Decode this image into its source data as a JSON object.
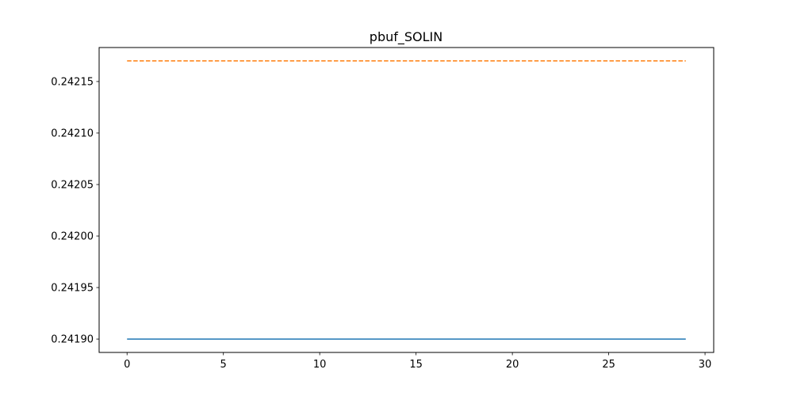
{
  "chart_data": {
    "type": "line",
    "title": "pbuf_SOLIN",
    "xlabel": "",
    "ylabel": "",
    "xlim": [
      -1.45,
      30.45
    ],
    "ylim": [
      0.241887,
      0.242183
    ],
    "xticks": [
      0,
      5,
      10,
      15,
      20,
      25,
      30
    ],
    "xtick_labels": [
      "0",
      "5",
      "10",
      "15",
      "20",
      "25",
      "30"
    ],
    "yticks": [
      0.2419,
      0.24195,
      0.242,
      0.24205,
      0.2421,
      0.24215
    ],
    "ytick_labels": [
      "0.24190",
      "0.24195",
      "0.24200",
      "0.24205",
      "0.24210",
      "0.24215"
    ],
    "grid": false,
    "series": [
      {
        "color": "#1f77b4",
        "dash": "solid",
        "x": [
          0,
          1,
          2,
          3,
          4,
          5,
          6,
          7,
          8,
          9,
          10,
          11,
          12,
          13,
          14,
          15,
          16,
          17,
          18,
          19,
          20,
          21,
          22,
          23,
          24,
          25,
          26,
          27,
          28,
          29
        ],
        "values": [
          0.2419,
          0.2419,
          0.2419,
          0.2419,
          0.2419,
          0.2419,
          0.2419,
          0.2419,
          0.2419,
          0.2419,
          0.2419,
          0.2419,
          0.2419,
          0.2419,
          0.2419,
          0.2419,
          0.2419,
          0.2419,
          0.2419,
          0.2419,
          0.2419,
          0.2419,
          0.2419,
          0.2419,
          0.2419,
          0.2419,
          0.2419,
          0.2419,
          0.2419,
          0.2419
        ]
      },
      {
        "color": "#ff7f0e",
        "dash": "dashed",
        "x": [
          0,
          1,
          2,
          3,
          4,
          5,
          6,
          7,
          8,
          9,
          10,
          11,
          12,
          13,
          14,
          15,
          16,
          17,
          18,
          19,
          20,
          21,
          22,
          23,
          24,
          25,
          26,
          27,
          28,
          29
        ],
        "values": [
          0.24217,
          0.24217,
          0.24217,
          0.24217,
          0.24217,
          0.24217,
          0.24217,
          0.24217,
          0.24217,
          0.24217,
          0.24217,
          0.24217,
          0.24217,
          0.24217,
          0.24217,
          0.24217,
          0.24217,
          0.24217,
          0.24217,
          0.24217,
          0.24217,
          0.24217,
          0.24217,
          0.24217,
          0.24217,
          0.24217,
          0.24217,
          0.24217,
          0.24217,
          0.24217
        ]
      }
    ]
  }
}
